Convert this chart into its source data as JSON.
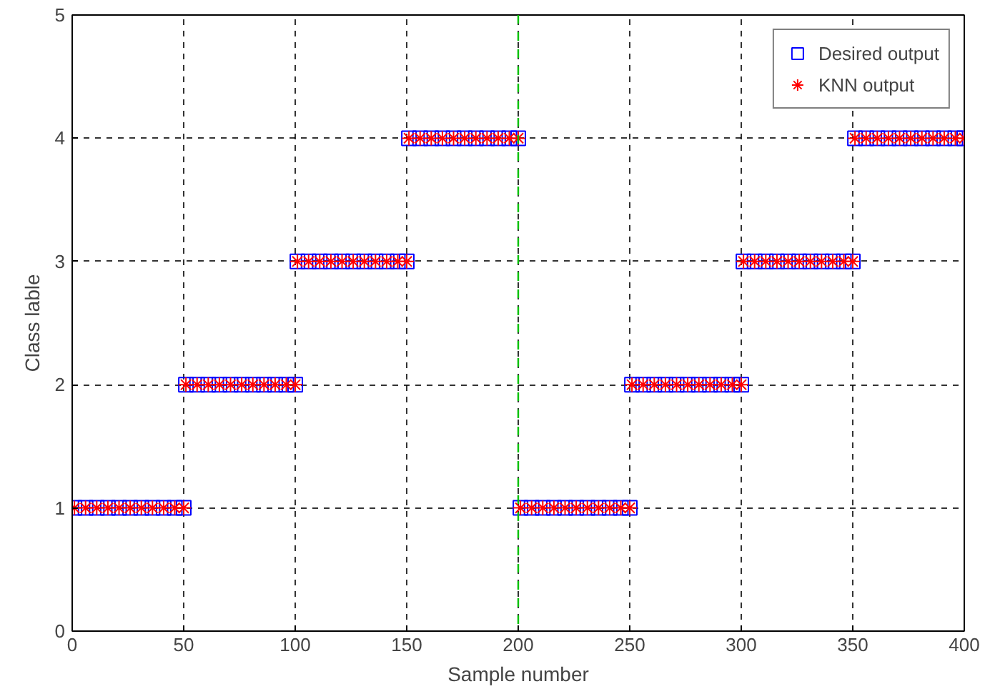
{
  "chart_data": {
    "type": "scatter",
    "xlabel": "Sample number",
    "ylabel": "Class lable",
    "x": [
      1,
      6,
      11,
      16,
      21,
      26,
      31,
      36,
      41,
      46,
      50,
      51,
      56,
      61,
      66,
      71,
      76,
      81,
      86,
      91,
      96,
      100,
      101,
      106,
      111,
      116,
      121,
      126,
      131,
      136,
      141,
      146,
      150,
      151,
      156,
      161,
      166,
      171,
      176,
      181,
      186,
      191,
      196,
      200,
      201,
      206,
      211,
      216,
      221,
      226,
      231,
      236,
      241,
      246,
      250,
      251,
      256,
      261,
      266,
      271,
      276,
      281,
      286,
      291,
      296,
      300,
      301,
      306,
      311,
      316,
      321,
      326,
      331,
      336,
      341,
      346,
      350,
      351,
      356,
      361,
      366,
      371,
      376,
      381,
      386,
      391,
      396,
      400
    ],
    "series": [
      {
        "name": "Desired output",
        "color": "#0000ff",
        "marker": "square",
        "values": [
          1,
          1,
          1,
          1,
          1,
          1,
          1,
          1,
          1,
          1,
          1,
          2,
          2,
          2,
          2,
          2,
          2,
          2,
          2,
          2,
          2,
          2,
          3,
          3,
          3,
          3,
          3,
          3,
          3,
          3,
          3,
          3,
          3,
          4,
          4,
          4,
          4,
          4,
          4,
          4,
          4,
          4,
          4,
          4,
          1,
          1,
          1,
          1,
          1,
          1,
          1,
          1,
          1,
          1,
          1,
          2,
          2,
          2,
          2,
          2,
          2,
          2,
          2,
          2,
          2,
          2,
          3,
          3,
          3,
          3,
          3,
          3,
          3,
          3,
          3,
          3,
          3,
          4,
          4,
          4,
          4,
          4,
          4,
          4,
          4,
          4,
          4,
          4
        ]
      },
      {
        "name": "KNN output",
        "color": "#ff0000",
        "marker": "cross",
        "values": [
          1,
          1,
          1,
          1,
          1,
          1,
          1,
          1,
          1,
          1,
          1,
          2,
          2,
          2,
          2,
          2,
          2,
          2,
          2,
          2,
          2,
          2,
          3,
          3,
          3,
          3,
          3,
          3,
          3,
          3,
          3,
          3,
          3,
          4,
          4,
          4,
          4,
          4,
          4,
          4,
          4,
          4,
          4,
          4,
          1,
          1,
          1,
          1,
          1,
          1,
          1,
          1,
          1,
          1,
          1,
          2,
          2,
          2,
          2,
          2,
          2,
          2,
          2,
          2,
          2,
          2,
          3,
          3,
          3,
          3,
          3,
          3,
          3,
          3,
          3,
          3,
          3,
          4,
          4,
          4,
          4,
          4,
          4,
          4,
          4,
          4,
          4,
          4
        ]
      }
    ],
    "xlim": [
      0,
      400
    ],
    "xticks": [
      0,
      50,
      100,
      150,
      200,
      250,
      300,
      350,
      400
    ],
    "ylim": [
      0,
      5
    ],
    "yticks": [
      0,
      1,
      2,
      3,
      4,
      5
    ],
    "ref_lines": [
      {
        "axis": "x",
        "value": 200,
        "color": "#00c000",
        "line_style": "dashed"
      }
    ],
    "grid": true,
    "legend": "top right"
  }
}
